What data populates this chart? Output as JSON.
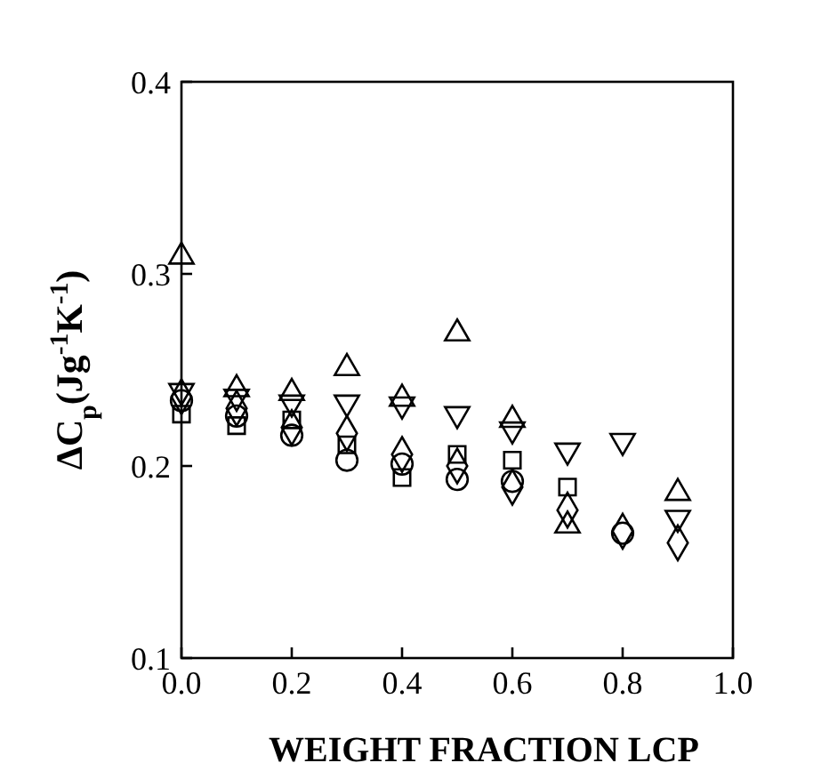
{
  "chart_data": {
    "type": "scatter",
    "xlabel": "WEIGHT FRACTION LCP",
    "ylabel": "ΔC$_{p}$(Jg$^{-1}$K$^{-1}$)",
    "x": [
      0,
      0.1,
      0.2,
      0.3,
      0.4,
      0.5,
      0.6,
      0.7,
      0.8,
      0.9
    ],
    "xlim": [
      0,
      1
    ],
    "xticks": [
      {
        "value": 0,
        "label": "0.0"
      },
      0.2,
      0.4,
      0.6,
      0.8,
      {
        "value": 1,
        "label": "1.0"
      }
    ],
    "ylim": [
      0.1,
      0.4
    ],
    "yticks": [
      0.1,
      0.2,
      0.3,
      0.4
    ],
    "grid": false,
    "series": [
      {
        "color": "#000000",
        "marker": "circle",
        "values": [
          0.234,
          0.226,
          0.216,
          0.203,
          0.201,
          0.193,
          0.192,
          null,
          0.165,
          null
        ]
      },
      {
        "color": "#000000",
        "marker": "square",
        "values": [
          0.227,
          0.221,
          0.224,
          0.211,
          0.194,
          0.206,
          0.203,
          0.189,
          null,
          null
        ]
      },
      {
        "color": "#000000",
        "marker": "triangle",
        "values": [
          0.309,
          0.24,
          0.238,
          0.251,
          0.235,
          0.269,
          0.224,
          0.169,
          null,
          0.186
        ]
      },
      {
        "color": "#000000",
        "marker": "triangle-down",
        "values": [
          0.239,
          0.236,
          0.233,
          0.233,
          0.232,
          0.227,
          0.219,
          0.208,
          0.213,
          0.173
        ]
      },
      {
        "color": "#000000",
        "marker": "diamond",
        "values": [
          0.236,
          0.23,
          0.22,
          0.217,
          0.206,
          0.2,
          0.189,
          0.177,
          0.166,
          0.16
        ]
      }
    ]
  }
}
